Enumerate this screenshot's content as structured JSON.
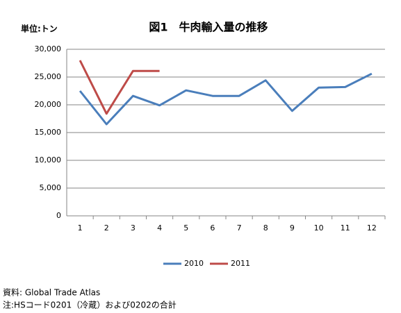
{
  "chart_data": {
    "type": "line",
    "title": "図1　牛肉輸入量の推移",
    "y_label": "単位:トン",
    "notes": [
      "資料: Global Trade Atlas",
      "注:HSコード0201（冷蔵）および0202の合計"
    ],
    "categories": [
      "1",
      "2",
      "3",
      "4",
      "5",
      "6",
      "7",
      "8",
      "9",
      "10",
      "11",
      "12"
    ],
    "series": [
      {
        "name": "2010",
        "color": "#4a7ebb",
        "values": [
          22500,
          16500,
          21600,
          19900,
          22600,
          21600,
          21600,
          24400,
          18900,
          23100,
          23200,
          25600
        ]
      },
      {
        "name": "2011",
        "color": "#be4b48",
        "values": [
          28000,
          18400,
          26100,
          26100,
          null,
          null,
          null,
          null,
          null,
          null,
          null,
          null
        ]
      }
    ],
    "ylim": [
      0,
      30000
    ],
    "yticks": [
      0,
      {
        "value": 5000,
        "label": "5,000"
      },
      {
        "value": 10000,
        "label": "10,000"
      },
      {
        "value": 15000,
        "label": "15,000"
      },
      {
        "value": 20000,
        "label": "20,000"
      },
      {
        "value": 25000,
        "label": "25,000"
      },
      {
        "value": 30000,
        "label": "30,000"
      }
    ],
    "grid": true,
    "legend": "bottom"
  }
}
